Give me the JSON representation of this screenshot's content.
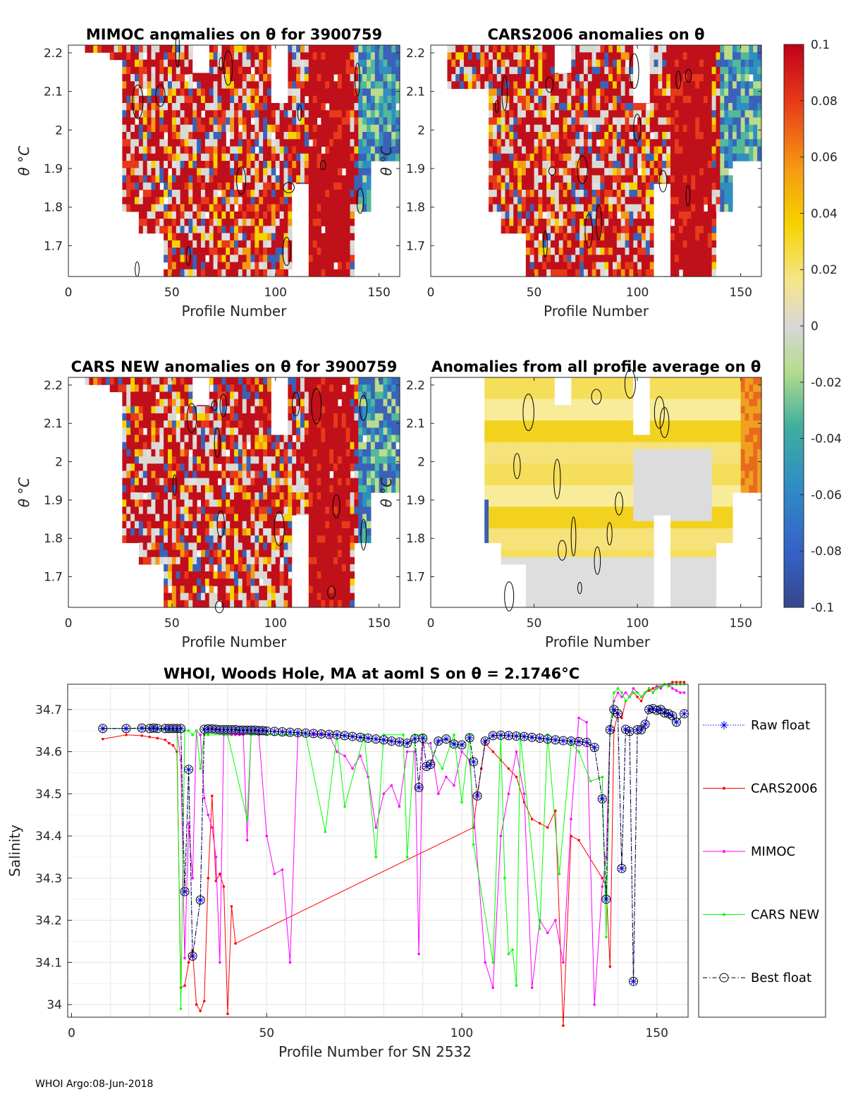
{
  "chart_data": [
    {
      "id": "mimoc",
      "type": "heatmap",
      "title": "MIMOC anomalies on θ  for 3900759",
      "xlabel": "Profile Number",
      "ylabel": "θ °C",
      "xticks": [
        0,
        50,
        100,
        150
      ],
      "yticks": [
        1.7,
        1.8,
        1.9,
        2,
        2.1,
        2.2
      ],
      "xlim": [
        0,
        160
      ],
      "ylim": [
        1.62,
        2.22
      ]
    },
    {
      "id": "cars2006",
      "type": "heatmap",
      "title": "CARS2006 anomalies on θ",
      "xlabel": "Profile Number",
      "ylabel": "θ °C",
      "xticks": [
        0,
        50,
        100,
        150
      ],
      "yticks": [
        1.7,
        1.8,
        1.9,
        2,
        2.1,
        2.2
      ],
      "xlim": [
        0,
        160
      ],
      "ylim": [
        1.62,
        2.22
      ]
    },
    {
      "id": "carsnew",
      "type": "heatmap",
      "title": "CARS NEW anomalies on θ for 3900759",
      "xlabel": "Profile Number",
      "ylabel": "θ °C",
      "xticks": [
        0,
        50,
        100,
        150
      ],
      "yticks": [
        1.7,
        1.8,
        1.9,
        2,
        2.1,
        2.2
      ],
      "xlim": [
        0,
        160
      ],
      "ylim": [
        1.62,
        2.22
      ]
    },
    {
      "id": "allavg",
      "type": "heatmap",
      "title": "Anomalies from all profile average on θ",
      "xlabel": "Profile Number",
      "ylabel": "θ °C",
      "xticks": [
        0,
        50,
        100,
        150
      ],
      "yticks": [
        1.7,
        1.8,
        1.9,
        2,
        2.1,
        2.2
      ],
      "xlim": [
        0,
        160
      ],
      "ylim": [
        1.62,
        2.22
      ]
    },
    {
      "id": "colorbar",
      "type": "colorbar",
      "ticks": [
        "0.1",
        "0.08",
        "0.06",
        "0.04",
        "0.02",
        "0",
        "-0.02",
        "-0.04",
        "-0.06",
        "-0.08",
        "-0.1"
      ],
      "range": [
        -0.1,
        0.1
      ]
    },
    {
      "id": "salinity",
      "type": "line",
      "title": "WHOI, Woods Hole, MA at aoml S on θ = 2.1746°C",
      "xlabel": "Profile Number for SN 2532",
      "ylabel": "Salinity",
      "xlim": [
        -1,
        158
      ],
      "ylim": [
        33.97,
        34.76
      ],
      "xticks": [
        0,
        50,
        100,
        150
      ],
      "yticks": [
        34,
        34.1,
        34.2,
        34.3,
        34.4,
        34.5,
        34.6,
        34.7
      ],
      "legend": [
        "Raw float",
        "CARS2006",
        "MIMOC",
        "CARS NEW",
        "Best float"
      ],
      "series": [
        {
          "name": "Raw float",
          "color": "#0000ff",
          "style": "dotted",
          "x": [
            8,
            14,
            18,
            20,
            21,
            22,
            24,
            25,
            26,
            27,
            28,
            29,
            30,
            31,
            33,
            34,
            35,
            36,
            37,
            38,
            39,
            40,
            41,
            42,
            43,
            44,
            45,
            46,
            47,
            48,
            49,
            50,
            52,
            54,
            56,
            58,
            60,
            62,
            64,
            66,
            68,
            70,
            72,
            74,
            76,
            78,
            80,
            82,
            84,
            86,
            88,
            89,
            90,
            91,
            92,
            94,
            96,
            98,
            100,
            102,
            103,
            104,
            106,
            108,
            110,
            112,
            114,
            116,
            118,
            120,
            122,
            124,
            126,
            128,
            130,
            132,
            134,
            136,
            137,
            138,
            139,
            140,
            141,
            142,
            143,
            144,
            145,
            146,
            147,
            148,
            149,
            150,
            151,
            152,
            153,
            154,
            155,
            157
          ],
          "y": [
            34.655,
            34.655,
            34.656,
            34.655,
            34.656,
            34.655,
            34.655,
            34.655,
            34.655,
            34.655,
            34.655,
            34.268,
            34.558,
            34.115,
            34.248,
            34.653,
            34.654,
            34.654,
            34.653,
            34.652,
            34.652,
            34.652,
            34.652,
            34.652,
            34.651,
            34.651,
            34.651,
            34.651,
            34.651,
            34.65,
            34.65,
            34.649,
            34.648,
            34.647,
            34.646,
            34.645,
            34.644,
            34.643,
            34.642,
            34.641,
            34.64,
            34.638,
            34.636,
            34.634,
            34.632,
            34.63,
            34.628,
            34.625,
            34.623,
            34.62,
            34.631,
            34.515,
            34.632,
            34.565,
            34.57,
            34.625,
            34.63,
            34.618,
            34.616,
            34.633,
            34.576,
            34.495,
            34.625,
            34.638,
            34.639,
            34.638,
            34.637,
            34.636,
            34.634,
            34.632,
            34.63,
            34.628,
            34.626,
            34.625,
            34.624,
            34.622,
            34.61,
            34.488,
            34.25,
            34.652,
            34.7,
            34.69,
            34.323,
            34.653,
            34.648,
            34.055,
            34.652,
            34.652,
            34.665,
            34.7,
            34.702,
            34.698,
            34.7,
            34.692,
            34.69,
            34.685,
            34.67,
            34.69
          ]
        },
        {
          "name": "CARS2006",
          "color": "#ff0000",
          "style": "solid",
          "x": [
            8,
            14,
            18,
            20,
            22,
            24,
            25,
            26,
            27,
            28,
            29,
            30,
            31,
            32,
            33,
            34,
            35,
            36,
            37,
            38,
            39,
            40,
            41,
            42,
            103,
            104,
            105,
            106,
            108,
            110,
            112,
            114,
            116,
            118,
            120,
            122,
            124,
            126,
            128,
            130,
            136,
            137,
            138,
            139,
            140,
            141,
            142,
            143,
            144,
            145,
            146,
            147,
            148,
            149,
            150,
            151,
            152,
            153,
            154,
            155,
            156,
            157
          ],
          "y": [
            34.63,
            34.64,
            34.638,
            34.635,
            34.632,
            34.628,
            34.62,
            34.615,
            34.6,
            34.04,
            34.045,
            34.1,
            34.13,
            34.0,
            33.985,
            34.008,
            34.3,
            34.495,
            34.293,
            34.31,
            34.28,
            33.978,
            34.233,
            34.145,
            34.42,
            34.5,
            34.56,
            34.62,
            34.6,
            34.58,
            34.56,
            34.54,
            34.48,
            34.44,
            34.43,
            34.42,
            34.46,
            33.95,
            34.4,
            34.39,
            34.3,
            34.28,
            34.09,
            34.65,
            34.69,
            34.68,
            34.72,
            34.73,
            34.74,
            34.73,
            34.72,
            34.74,
            34.745,
            34.75,
            34.755,
            34.755,
            34.76,
            34.76,
            34.765,
            34.765,
            34.765,
            34.765
          ]
        },
        {
          "name": "MIMOC",
          "color": "#ff00ff",
          "style": "solid",
          "x": [
            8,
            20,
            27,
            28,
            29,
            30,
            31,
            32,
            33,
            34,
            35,
            36,
            37,
            38,
            39,
            40,
            41,
            42,
            43,
            44,
            45,
            46,
            48,
            50,
            52,
            54,
            56,
            58,
            60,
            62,
            64,
            66,
            68,
            70,
            72,
            74,
            76,
            78,
            80,
            82,
            84,
            86,
            88,
            89,
            90,
            92,
            94,
            96,
            98,
            100,
            102,
            106,
            108,
            110,
            112,
            114,
            116,
            118,
            120,
            122,
            124,
            126,
            128,
            130,
            132,
            134,
            136,
            137,
            138,
            139,
            140,
            141,
            142,
            143,
            144,
            145,
            146,
            147,
            148,
            149,
            150,
            151,
            152,
            153,
            154,
            155,
            156,
            157
          ],
          "y": [
            34.655,
            34.655,
            34.65,
            34.58,
            34.11,
            34.43,
            34.3,
            34.65,
            34.64,
            34.49,
            34.45,
            34.42,
            34.35,
            34.1,
            34.64,
            34.64,
            34.64,
            34.64,
            34.64,
            34.64,
            34.39,
            34.64,
            34.64,
            34.4,
            34.31,
            34.32,
            34.1,
            34.64,
            34.64,
            34.64,
            34.64,
            34.64,
            34.6,
            34.59,
            34.56,
            34.59,
            34.54,
            34.42,
            34.5,
            34.52,
            34.47,
            34.6,
            34.6,
            34.12,
            34.62,
            34.62,
            34.5,
            34.54,
            34.52,
            34.6,
            34.58,
            34.1,
            34.04,
            34.4,
            34.5,
            34.6,
            34.5,
            34.04,
            34.2,
            34.17,
            34.2,
            34.1,
            34.44,
            34.68,
            34.67,
            34.0,
            34.28,
            34.35,
            34.66,
            34.72,
            34.74,
            34.73,
            34.74,
            34.73,
            34.75,
            34.74,
            34.73,
            34.74,
            34.75,
            34.74,
            34.755,
            34.75,
            34.76,
            34.76,
            34.75,
            34.745,
            34.74,
            34.74
          ]
        },
        {
          "name": "CARS NEW",
          "color": "#00ff00",
          "style": "solid",
          "x": [
            8,
            20,
            26,
            27,
            28,
            29,
            30,
            31,
            32,
            33,
            34,
            35,
            40,
            45,
            46,
            50,
            55,
            60,
            65,
            68,
            70,
            75,
            78,
            80,
            85,
            86,
            88,
            90,
            95,
            98,
            100,
            102,
            103,
            108,
            110,
            111,
            112,
            113,
            114,
            115,
            120,
            122,
            125,
            128,
            130,
            133,
            136,
            137,
            138,
            139,
            140,
            141,
            142,
            143,
            144,
            145,
            146,
            147,
            148,
            149,
            150,
            151,
            152,
            153,
            154,
            155,
            156,
            157
          ],
          "y": [
            34.655,
            34.655,
            34.65,
            34.648,
            33.99,
            34.65,
            34.65,
            34.64,
            34.65,
            34.56,
            34.64,
            34.64,
            34.64,
            34.44,
            34.64,
            34.64,
            34.64,
            34.64,
            34.41,
            34.64,
            34.47,
            34.64,
            34.35,
            34.64,
            34.64,
            34.35,
            34.64,
            34.64,
            34.56,
            34.64,
            34.48,
            34.64,
            34.38,
            34.1,
            34.64,
            34.3,
            34.12,
            34.13,
            34.045,
            34.64,
            34.18,
            34.64,
            34.31,
            34.62,
            34.6,
            34.53,
            34.54,
            34.16,
            34.65,
            34.74,
            34.75,
            34.74,
            34.72,
            34.73,
            34.74,
            34.74,
            34.73,
            34.74,
            34.75,
            34.74,
            34.75,
            34.755,
            34.76,
            34.755,
            34.76,
            34.76,
            34.76,
            34.76
          ]
        },
        {
          "name": "Best float",
          "color": "#000000",
          "style": "dashdot",
          "x": [
            8,
            14,
            18,
            20,
            21,
            22,
            24,
            25,
            26,
            27,
            28,
            29,
            30,
            31,
            33,
            34,
            35,
            36,
            37,
            38,
            39,
            40,
            41,
            42,
            43,
            44,
            45,
            46,
            47,
            48,
            49,
            50,
            52,
            54,
            56,
            58,
            60,
            62,
            64,
            66,
            68,
            70,
            72,
            74,
            76,
            78,
            80,
            82,
            84,
            86,
            88,
            89,
            90,
            91,
            92,
            94,
            96,
            98,
            100,
            102,
            103,
            104,
            106,
            108,
            110,
            112,
            114,
            116,
            118,
            120,
            122,
            124,
            126,
            128,
            130,
            132,
            134,
            136,
            137,
            138,
            139,
            140,
            141,
            142,
            143,
            144,
            145,
            146,
            147,
            148,
            149,
            150,
            151,
            152,
            153,
            154,
            155,
            157
          ],
          "y": [
            34.655,
            34.655,
            34.656,
            34.655,
            34.656,
            34.655,
            34.655,
            34.655,
            34.655,
            34.655,
            34.655,
            34.268,
            34.558,
            34.115,
            34.248,
            34.653,
            34.654,
            34.654,
            34.653,
            34.652,
            34.652,
            34.652,
            34.652,
            34.652,
            34.651,
            34.651,
            34.651,
            34.651,
            34.651,
            34.65,
            34.65,
            34.649,
            34.648,
            34.647,
            34.646,
            34.645,
            34.644,
            34.643,
            34.642,
            34.641,
            34.64,
            34.638,
            34.636,
            34.634,
            34.632,
            34.63,
            34.628,
            34.625,
            34.623,
            34.62,
            34.631,
            34.515,
            34.632,
            34.565,
            34.57,
            34.625,
            34.63,
            34.618,
            34.616,
            34.633,
            34.576,
            34.495,
            34.625,
            34.638,
            34.639,
            34.638,
            34.637,
            34.636,
            34.634,
            34.632,
            34.63,
            34.628,
            34.626,
            34.625,
            34.624,
            34.622,
            34.61,
            34.488,
            34.25,
            34.652,
            34.7,
            34.69,
            34.323,
            34.653,
            34.648,
            34.055,
            34.652,
            34.652,
            34.665,
            34.7,
            34.702,
            34.698,
            34.7,
            34.692,
            34.69,
            34.685,
            34.67,
            34.69
          ]
        }
      ]
    }
  ],
  "footer": "WHOI Argo:08-Jun-2018"
}
